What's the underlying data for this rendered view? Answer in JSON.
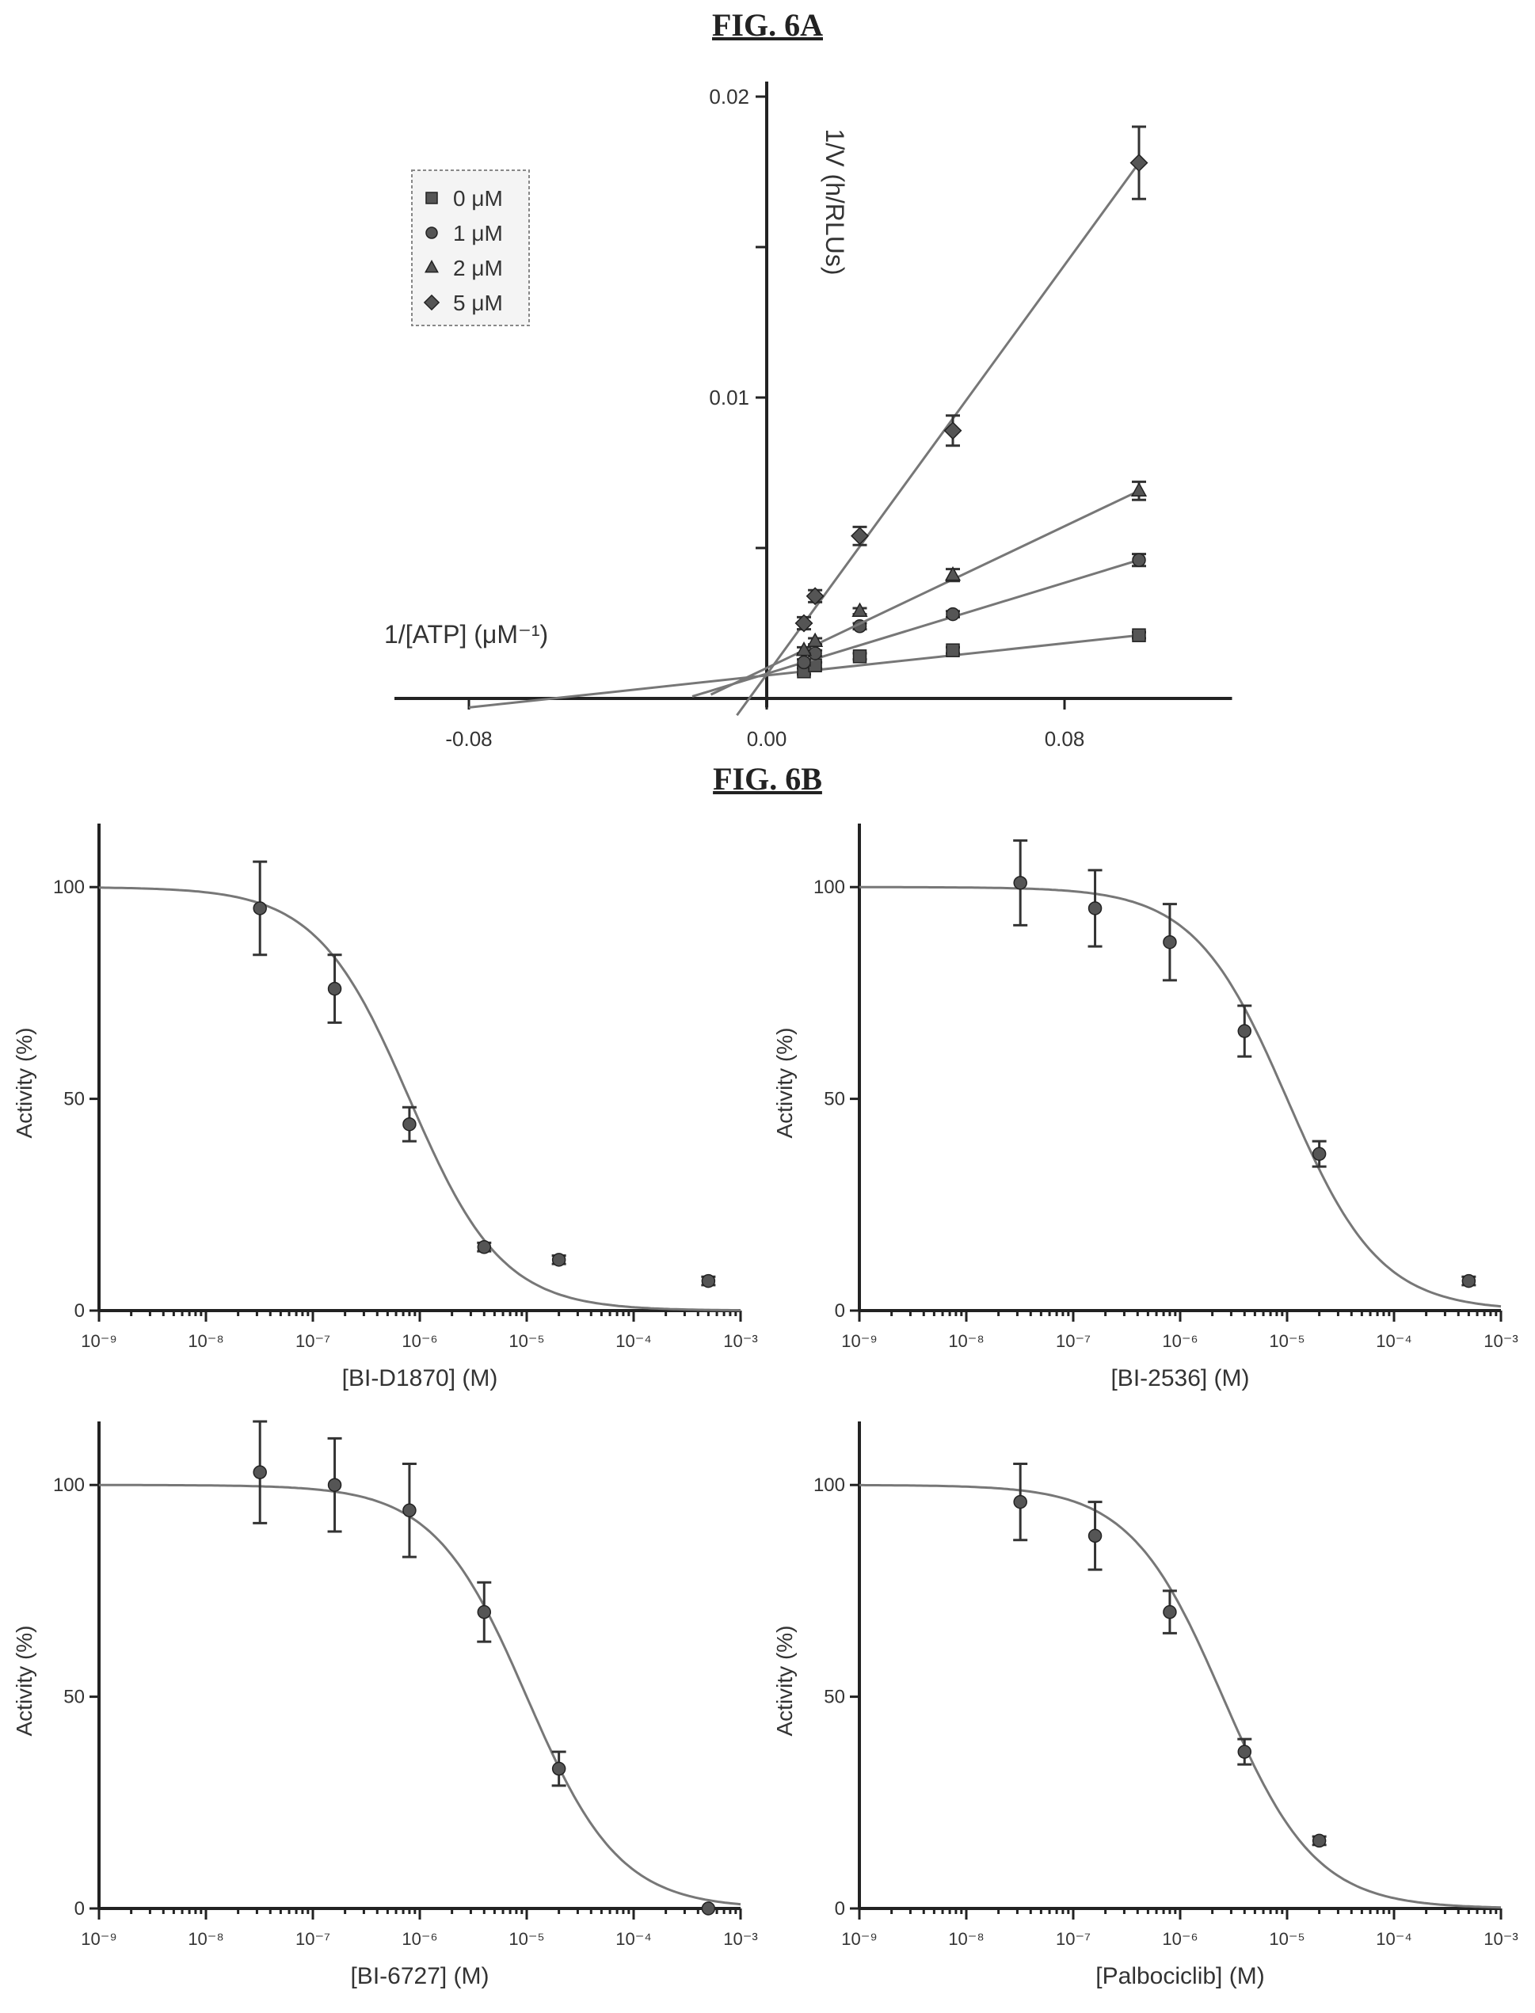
{
  "figures": {
    "fig_6a_label": "FIG. 6A",
    "fig_6b_label": "FIG. 6B"
  },
  "chart_data": [
    {
      "id": "fig6a",
      "type": "scatter",
      "title": "",
      "xlabel": "1/[ATP] (μM⁻¹)",
      "ylabel": "1/V (h/RLUs)",
      "xlim": [
        -0.1,
        0.125
      ],
      "ylim": [
        -0.0003,
        0.0205
      ],
      "x_ticks": [
        -0.08,
        0.0,
        0.08
      ],
      "x_tick_labels": [
        "-0.08",
        "0.00",
        "0.08"
      ],
      "y_ticks": [
        0.0,
        0.005,
        0.01,
        0.015,
        0.02
      ],
      "y_tick_labels": [
        "",
        "",
        "0.01",
        "",
        "0.02"
      ],
      "legend_position": "top-left",
      "series": [
        {
          "name": "0 μM",
          "marker": "square",
          "x": [
            0.01,
            0.013,
            0.025,
            0.05,
            0.1
          ],
          "y": [
            0.0009,
            0.0011,
            0.0014,
            0.0016,
            0.0021
          ],
          "yerr": [
            0.0001,
            0.0001,
            0.0001,
            0.0001,
            0.0001
          ],
          "fit": [
            -0.08,
            0.1
          ]
        },
        {
          "name": "1 μM",
          "marker": "circle",
          "x": [
            0.01,
            0.013,
            0.025,
            0.05,
            0.1
          ],
          "y": [
            0.0012,
            0.0015,
            0.0024,
            0.0028,
            0.0046
          ],
          "yerr": [
            0.0001,
            0.0001,
            0.0001,
            0.0001,
            0.0002
          ],
          "fit": [
            -0.02,
            0.1
          ]
        },
        {
          "name": "2 μM",
          "marker": "triangle",
          "x": [
            0.01,
            0.013,
            0.025,
            0.05,
            0.1
          ],
          "y": [
            0.0016,
            0.0019,
            0.0029,
            0.0041,
            0.0069
          ],
          "yerr": [
            0.0001,
            0.0001,
            0.0001,
            0.0002,
            0.0003
          ],
          "fit": [
            -0.015,
            0.1
          ]
        },
        {
          "name": "5 μM",
          "marker": "diamond",
          "x": [
            0.01,
            0.013,
            0.025,
            0.05,
            0.1
          ],
          "y": [
            0.0025,
            0.0034,
            0.0054,
            0.0089,
            0.0178
          ],
          "yerr": [
            0.0002,
            0.0002,
            0.0003,
            0.0005,
            0.0012
          ],
          "fit": [
            -0.008,
            0.1
          ]
        }
      ]
    },
    {
      "id": "bi-d1870",
      "type": "scatter",
      "title": "",
      "xlabel": "[BI-D1870] (M)",
      "ylabel": "Activity (%)",
      "x_scale": "log",
      "xlim": [
        1e-09,
        0.001
      ],
      "ylim": [
        0,
        115
      ],
      "x_ticks": [
        1e-09,
        1e-08,
        1e-07,
        1e-06,
        1e-05,
        0.0001,
        0.001
      ],
      "x_tick_labels": [
        "10⁻⁹",
        "10⁻⁸",
        "10⁻⁷",
        "10⁻⁶",
        "10⁻⁵",
        "10⁻⁴",
        "10⁻³"
      ],
      "y_ticks": [
        0,
        50,
        100
      ],
      "y_tick_labels": [
        "0",
        "50",
        "100"
      ],
      "x": [
        3.2e-08,
        1.6e-07,
        8e-07,
        4e-06,
        2e-05,
        0.0005
      ],
      "y": [
        95,
        76,
        44,
        15,
        12,
        7
      ],
      "yerr": [
        11,
        8,
        4,
        1,
        1,
        1
      ],
      "fit": {
        "top": 100,
        "bottom": 0,
        "ic50": 8e-07,
        "hill": 1
      }
    },
    {
      "id": "bi-2536",
      "type": "scatter",
      "title": "",
      "xlabel": "[BI-2536] (M)",
      "ylabel": "Activity (%)",
      "x_scale": "log",
      "xlim": [
        1e-09,
        0.001
      ],
      "ylim": [
        0,
        115
      ],
      "x_ticks": [
        1e-09,
        1e-08,
        1e-07,
        1e-06,
        1e-05,
        0.0001,
        0.001
      ],
      "x_tick_labels": [
        "10⁻⁹",
        "10⁻⁸",
        "10⁻⁷",
        "10⁻⁶",
        "10⁻⁵",
        "10⁻⁴",
        "10⁻³"
      ],
      "y_ticks": [
        0,
        50,
        100
      ],
      "y_tick_labels": [
        "0",
        "50",
        "100"
      ],
      "x": [
        3.2e-08,
        1.6e-07,
        8e-07,
        4e-06,
        2e-05,
        0.0005
      ],
      "y": [
        101,
        95,
        87,
        66,
        37,
        7
      ],
      "yerr": [
        10,
        9,
        9,
        6,
        3,
        1
      ],
      "fit": {
        "top": 100,
        "bottom": 0,
        "ic50": 1e-05,
        "hill": 1
      }
    },
    {
      "id": "bi-6727",
      "type": "scatter",
      "title": "",
      "xlabel": "[BI-6727] (M)",
      "ylabel": "Activity (%)",
      "x_scale": "log",
      "xlim": [
        1e-09,
        0.001
      ],
      "ylim": [
        0,
        115
      ],
      "x_ticks": [
        1e-09,
        1e-08,
        1e-07,
        1e-06,
        1e-05,
        0.0001,
        0.001
      ],
      "x_tick_labels": [
        "10⁻⁹",
        "10⁻⁸",
        "10⁻⁷",
        "10⁻⁶",
        "10⁻⁵",
        "10⁻⁴",
        "10⁻³"
      ],
      "y_ticks": [
        0,
        50,
        100
      ],
      "y_tick_labels": [
        "0",
        "50",
        "100"
      ],
      "x": [
        3.2e-08,
        1.6e-07,
        8e-07,
        4e-06,
        2e-05,
        0.0005
      ],
      "y": [
        103,
        100,
        94,
        70,
        33,
        0
      ],
      "yerr": [
        12,
        11,
        11,
        7,
        4,
        0
      ],
      "fit": {
        "top": 100,
        "bottom": 0,
        "ic50": 1e-05,
        "hill": 1
      }
    },
    {
      "id": "palbociclib",
      "type": "scatter",
      "title": "",
      "xlabel": "[Palbociclib] (M)",
      "ylabel": "Activity (%)",
      "x_scale": "log",
      "xlim": [
        1e-09,
        0.001
      ],
      "ylim": [
        0,
        115
      ],
      "x_ticks": [
        1e-09,
        1e-08,
        1e-07,
        1e-06,
        1e-05,
        0.0001,
        0.001
      ],
      "x_tick_labels": [
        "10⁻⁹",
        "10⁻⁸",
        "10⁻⁷",
        "10⁻⁶",
        "10⁻⁵",
        "10⁻⁴",
        "10⁻³"
      ],
      "y_ticks": [
        0,
        50,
        100
      ],
      "y_tick_labels": [
        "0",
        "50",
        "100"
      ],
      "x": [
        3.2e-08,
        1.6e-07,
        8e-07,
        4e-06,
        2e-05
      ],
      "y": [
        96,
        88,
        70,
        37,
        16
      ],
      "yerr": [
        9,
        8,
        5,
        3,
        1
      ],
      "fit": {
        "top": 100,
        "bottom": 0,
        "ic50": 2.5e-06,
        "hill": 1
      }
    }
  ]
}
